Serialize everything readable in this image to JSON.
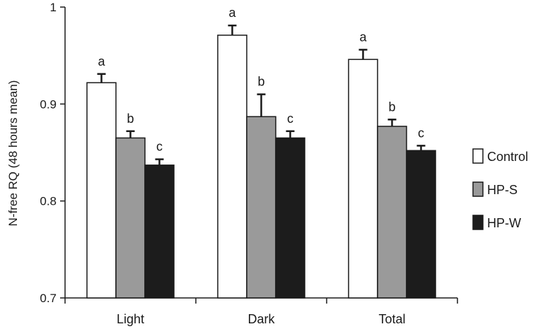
{
  "chart_data": {
    "type": "bar",
    "title": "",
    "xlabel": "",
    "ylabel": "N-free RQ (48 hours mean)",
    "ylim": [
      0.7,
      1.0
    ],
    "yticks": [
      "0.7",
      "0.8",
      "0.9",
      "1"
    ],
    "ytick_values": [
      0.7,
      0.8,
      0.9,
      1.0
    ],
    "categories": [
      "Light",
      "Dark",
      "Total"
    ],
    "legend_position": "right",
    "grid": false,
    "series": [
      {
        "name": "Control",
        "color": "#ffffff",
        "values": [
          0.922,
          0.971,
          0.946
        ],
        "errors": [
          0.009,
          0.01,
          0.01
        ],
        "sig": [
          "a",
          "a",
          "a"
        ]
      },
      {
        "name": "HP-S",
        "color": "#9a9a9a",
        "values": [
          0.865,
          0.887,
          0.877
        ],
        "errors": [
          0.007,
          0.023,
          0.007
        ],
        "sig": [
          "b",
          "b",
          "b"
        ]
      },
      {
        "name": "HP-W",
        "color": "#1c1c1c",
        "values": [
          0.837,
          0.865,
          0.852
        ],
        "errors": [
          0.006,
          0.007,
          0.005
        ],
        "sig": [
          "c",
          "c",
          "c"
        ]
      }
    ]
  }
}
